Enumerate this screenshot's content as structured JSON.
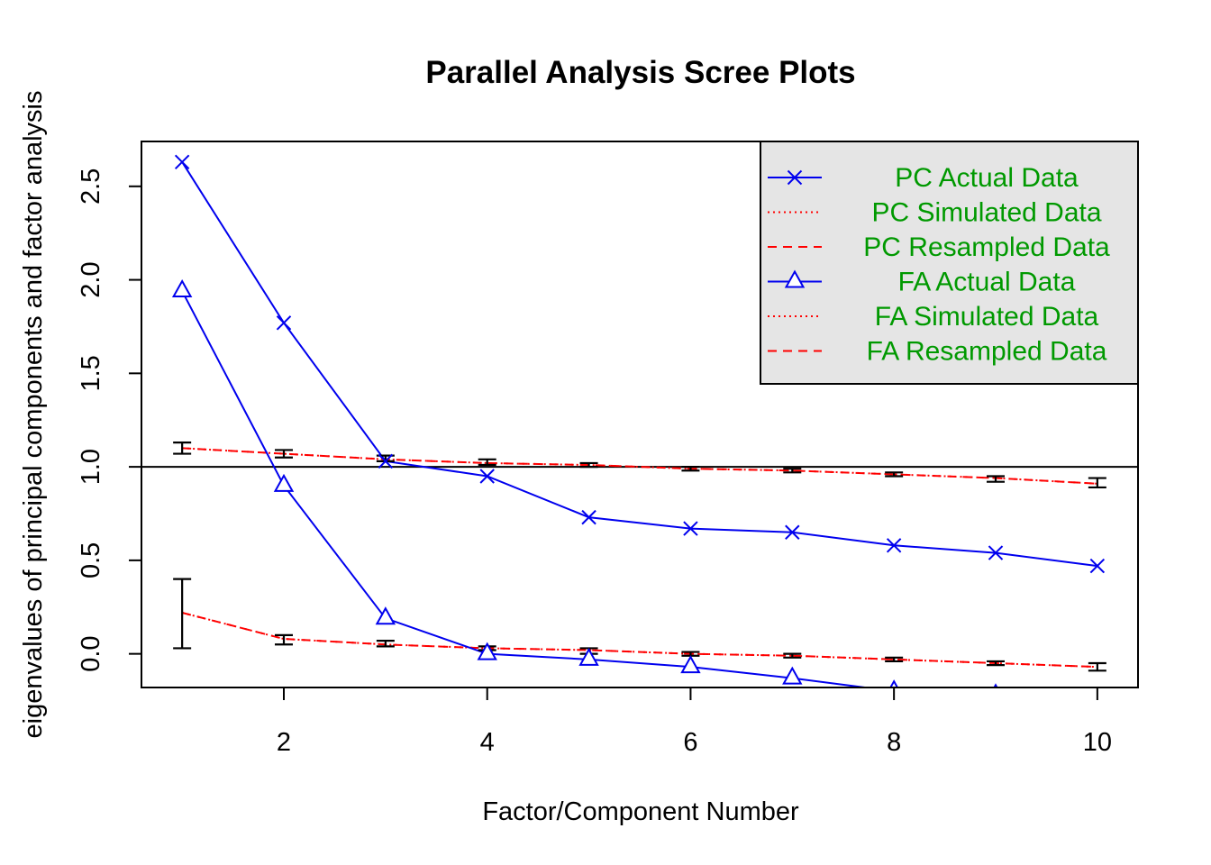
{
  "chart_data": {
    "type": "line",
    "title": "Parallel Analysis Scree Plots",
    "xlabel": "Factor/Component Number",
    "ylabel": "eigenvalues of principal components and factor analysis",
    "xlim": [
      0.6,
      10.4
    ],
    "ylim": [
      -0.18,
      2.74
    ],
    "x_ticks": [
      "2",
      "4",
      "6",
      "8",
      "10"
    ],
    "y_ticks": [
      "0.0",
      "0.5",
      "1.0",
      "1.5",
      "2.0",
      "2.5"
    ],
    "reference_line": 1.0,
    "grid": false,
    "legend_position": "top-right",
    "x": [
      1,
      2,
      3,
      4,
      5,
      6,
      7,
      8,
      9,
      10
    ],
    "series": [
      {
        "name": "PC  Actual Data",
        "style": "solid",
        "marker": "cross",
        "color": "#0000ee",
        "values": [
          2.63,
          1.77,
          1.03,
          0.95,
          0.73,
          0.67,
          0.65,
          0.58,
          0.54,
          0.47
        ]
      },
      {
        "name": "PC  Simulated Data",
        "style": "dotted",
        "marker": "none",
        "color": "#ff0000",
        "values": [
          1.1,
          1.07,
          1.04,
          1.02,
          1.01,
          0.99,
          0.98,
          0.96,
          0.94,
          0.91
        ]
      },
      {
        "name": "PC  Resampled Data",
        "style": "dashed",
        "marker": "none",
        "color": "#ff0000",
        "values": [
          1.1,
          1.07,
          1.04,
          1.02,
          1.01,
          0.99,
          0.98,
          0.96,
          0.94,
          0.91
        ],
        "error_low": [
          1.07,
          1.05,
          1.03,
          1.01,
          1.0,
          0.98,
          0.97,
          0.95,
          0.92,
          0.89
        ],
        "error_high": [
          1.13,
          1.09,
          1.06,
          1.04,
          1.02,
          1.0,
          0.99,
          0.97,
          0.95,
          0.94
        ]
      },
      {
        "name": "FA  Actual Data",
        "style": "solid",
        "marker": "triangle",
        "color": "#0000ee",
        "values": [
          1.94,
          0.9,
          0.19,
          0.0,
          -0.03,
          -0.07,
          -0.13,
          -0.2,
          -0.22,
          -0.24
        ]
      },
      {
        "name": "FA  Simulated Data",
        "style": "dotted",
        "marker": "none",
        "color": "#ff0000",
        "values": [
          0.22,
          0.08,
          0.05,
          0.03,
          0.02,
          0.0,
          -0.01,
          -0.03,
          -0.05,
          -0.07
        ]
      },
      {
        "name": "FA  Resampled Data",
        "style": "dashed",
        "marker": "none",
        "color": "#ff0000",
        "values": [
          0.22,
          0.08,
          0.05,
          0.03,
          0.02,
          0.0,
          -0.01,
          -0.03,
          -0.05,
          -0.07
        ],
        "error_low": [
          0.03,
          0.05,
          0.04,
          0.02,
          0.0,
          -0.01,
          -0.02,
          -0.04,
          -0.06,
          -0.09
        ],
        "error_high": [
          0.4,
          0.1,
          0.07,
          0.04,
          0.03,
          0.01,
          0.0,
          -0.02,
          -0.04,
          -0.05
        ]
      }
    ]
  },
  "colors": {
    "actual": "#0000ee",
    "simulated": "#ff0000",
    "legend_text": "#009900",
    "legend_bg": "#e5e5e5",
    "axis": "#000000"
  }
}
